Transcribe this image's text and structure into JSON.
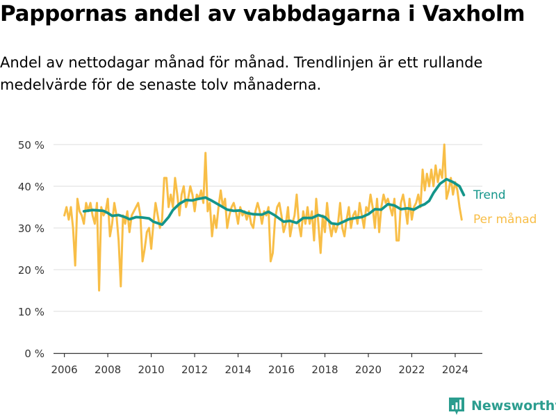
{
  "title": "Pappornas andel av vabbdagarna i Vaxholm",
  "subtitle": "Andel av nettodagar månad för månad. Trendlinjen är ett rullande medelvärde för de senaste tolv månaderna.",
  "brand": {
    "name": "Newsworthy",
    "logo_icon": "newsworthy-logo-icon",
    "color": "#2b9d8f"
  },
  "chart_data": {
    "type": "line",
    "title": "Pappornas andel av vabbdagarna i Vaxholm",
    "xlabel": "",
    "ylabel": "",
    "xlim": [
      2005.5,
      2025.25
    ],
    "ylim": [
      0,
      50
    ],
    "grid": true,
    "x_ticks": [
      2006,
      2008,
      2010,
      2012,
      2014,
      2016,
      2018,
      2020,
      2022,
      2024
    ],
    "y_ticks": [
      0,
      10,
      20,
      30,
      40,
      50
    ],
    "y_tick_labels": [
      "0 %",
      "10 %",
      "20 %",
      "30 %",
      "40 %",
      "50 %"
    ],
    "legend_placement": "right-end-labels",
    "series": [
      {
        "name": "Per månad",
        "color": "#f8be47",
        "points": [
          [
            2006.0,
            33
          ],
          [
            2006.1,
            35
          ],
          [
            2006.2,
            32
          ],
          [
            2006.3,
            35
          ],
          [
            2006.4,
            30
          ],
          [
            2006.5,
            21
          ],
          [
            2006.6,
            37
          ],
          [
            2006.7,
            34
          ],
          [
            2006.8,
            33
          ],
          [
            2006.9,
            31
          ],
          [
            2007.0,
            36
          ],
          [
            2007.1,
            34
          ],
          [
            2007.2,
            36
          ],
          [
            2007.3,
            33
          ],
          [
            2007.4,
            31
          ],
          [
            2007.5,
            36
          ],
          [
            2007.6,
            15
          ],
          [
            2007.7,
            35
          ],
          [
            2007.8,
            33
          ],
          [
            2007.9,
            34
          ],
          [
            2008.0,
            37
          ],
          [
            2008.1,
            28
          ],
          [
            2008.2,
            31
          ],
          [
            2008.3,
            36
          ],
          [
            2008.4,
            33
          ],
          [
            2008.5,
            27
          ],
          [
            2008.6,
            16
          ],
          [
            2008.7,
            33
          ],
          [
            2008.8,
            31
          ],
          [
            2008.9,
            34
          ],
          [
            2009.0,
            29
          ],
          [
            2009.1,
            33
          ],
          [
            2009.2,
            34
          ],
          [
            2009.3,
            35
          ],
          [
            2009.4,
            36
          ],
          [
            2009.5,
            33
          ],
          [
            2009.6,
            22
          ],
          [
            2009.7,
            25
          ],
          [
            2009.8,
            29
          ],
          [
            2009.9,
            30
          ],
          [
            2010.0,
            25
          ],
          [
            2010.1,
            31
          ],
          [
            2010.2,
            36
          ],
          [
            2010.3,
            33
          ],
          [
            2010.4,
            30
          ],
          [
            2010.5,
            32
          ],
          [
            2010.6,
            42
          ],
          [
            2010.7,
            42
          ],
          [
            2010.8,
            35
          ],
          [
            2010.9,
            38
          ],
          [
            2011.0,
            35
          ],
          [
            2011.1,
            42
          ],
          [
            2011.2,
            38
          ],
          [
            2011.3,
            33
          ],
          [
            2011.4,
            38
          ],
          [
            2011.5,
            40
          ],
          [
            2011.6,
            35
          ],
          [
            2011.7,
            37
          ],
          [
            2011.8,
            40
          ],
          [
            2011.9,
            38
          ],
          [
            2012.0,
            34
          ],
          [
            2012.1,
            38
          ],
          [
            2012.2,
            37
          ],
          [
            2012.3,
            39
          ],
          [
            2012.4,
            36
          ],
          [
            2012.5,
            48
          ],
          [
            2012.6,
            34
          ],
          [
            2012.7,
            36
          ],
          [
            2012.8,
            28
          ],
          [
            2012.9,
            33
          ],
          [
            2013.0,
            30
          ],
          [
            2013.1,
            35
          ],
          [
            2013.2,
            39
          ],
          [
            2013.3,
            35
          ],
          [
            2013.4,
            37
          ],
          [
            2013.5,
            30
          ],
          [
            2013.6,
            33
          ],
          [
            2013.7,
            35
          ],
          [
            2013.8,
            36
          ],
          [
            2013.9,
            34
          ],
          [
            2014.0,
            31
          ],
          [
            2014.1,
            35
          ],
          [
            2014.2,
            33
          ],
          [
            2014.3,
            34
          ],
          [
            2014.4,
            32
          ],
          [
            2014.5,
            34
          ],
          [
            2014.6,
            31
          ],
          [
            2014.7,
            30
          ],
          [
            2014.8,
            34
          ],
          [
            2014.9,
            36
          ],
          [
            2015.0,
            34
          ],
          [
            2015.1,
            31
          ],
          [
            2015.2,
            34
          ],
          [
            2015.3,
            33
          ],
          [
            2015.4,
            35
          ],
          [
            2015.5,
            22
          ],
          [
            2015.6,
            24
          ],
          [
            2015.7,
            32
          ],
          [
            2015.8,
            35
          ],
          [
            2015.9,
            36
          ],
          [
            2016.0,
            33
          ],
          [
            2016.1,
            29
          ],
          [
            2016.2,
            31
          ],
          [
            2016.3,
            35
          ],
          [
            2016.4,
            28
          ],
          [
            2016.5,
            31
          ],
          [
            2016.6,
            33
          ],
          [
            2016.7,
            38
          ],
          [
            2016.8,
            31
          ],
          [
            2016.9,
            28
          ],
          [
            2017.0,
            34
          ],
          [
            2017.1,
            31
          ],
          [
            2017.2,
            35
          ],
          [
            2017.3,
            31
          ],
          [
            2017.4,
            34
          ],
          [
            2017.5,
            27
          ],
          [
            2017.6,
            37
          ],
          [
            2017.7,
            31
          ],
          [
            2017.8,
            24
          ],
          [
            2017.9,
            33
          ],
          [
            2018.0,
            29
          ],
          [
            2018.1,
            36
          ],
          [
            2018.2,
            31
          ],
          [
            2018.3,
            28
          ],
          [
            2018.4,
            31
          ],
          [
            2018.5,
            29
          ],
          [
            2018.6,
            31
          ],
          [
            2018.7,
            36
          ],
          [
            2018.8,
            30
          ],
          [
            2018.9,
            28
          ],
          [
            2019.0,
            32
          ],
          [
            2019.1,
            35
          ],
          [
            2019.2,
            30
          ],
          [
            2019.3,
            33
          ],
          [
            2019.4,
            34
          ],
          [
            2019.5,
            31
          ],
          [
            2019.6,
            36
          ],
          [
            2019.7,
            33
          ],
          [
            2019.8,
            30
          ],
          [
            2019.9,
            35
          ],
          [
            2020.0,
            34
          ],
          [
            2020.1,
            38
          ],
          [
            2020.2,
            35
          ],
          [
            2020.3,
            30
          ],
          [
            2020.4,
            37
          ],
          [
            2020.5,
            29
          ],
          [
            2020.6,
            35
          ],
          [
            2020.7,
            38
          ],
          [
            2020.8,
            36
          ],
          [
            2020.9,
            37
          ],
          [
            2021.0,
            35
          ],
          [
            2021.1,
            33
          ],
          [
            2021.2,
            37
          ],
          [
            2021.3,
            27
          ],
          [
            2021.4,
            27
          ],
          [
            2021.5,
            36
          ],
          [
            2021.6,
            38
          ],
          [
            2021.7,
            35
          ],
          [
            2021.8,
            31
          ],
          [
            2021.9,
            37
          ],
          [
            2022.0,
            32
          ],
          [
            2022.1,
            35
          ],
          [
            2022.2,
            36
          ],
          [
            2022.3,
            38
          ],
          [
            2022.4,
            35
          ],
          [
            2022.5,
            44
          ],
          [
            2022.6,
            39
          ],
          [
            2022.7,
            43
          ],
          [
            2022.8,
            40
          ],
          [
            2022.9,
            44
          ],
          [
            2023.0,
            40
          ],
          [
            2023.1,
            45
          ],
          [
            2023.2,
            41
          ],
          [
            2023.3,
            44
          ],
          [
            2023.4,
            42
          ],
          [
            2023.5,
            50
          ],
          [
            2023.6,
            37
          ],
          [
            2023.7,
            39
          ],
          [
            2023.8,
            42
          ],
          [
            2023.9,
            38
          ],
          [
            2024.0,
            41
          ],
          [
            2024.1,
            39
          ],
          [
            2024.2,
            35
          ],
          [
            2024.3,
            32
          ]
        ]
      },
      {
        "name": "Trend",
        "color": "#14958a",
        "points": [
          [
            2006.9,
            34
          ],
          [
            2007.3,
            34.3
          ],
          [
            2007.8,
            34.1
          ],
          [
            2008.0,
            33.6
          ],
          [
            2008.2,
            32.9
          ],
          [
            2008.5,
            33.1
          ],
          [
            2008.8,
            32.6
          ],
          [
            2009.0,
            32.1
          ],
          [
            2009.3,
            32.6
          ],
          [
            2009.6,
            32.5
          ],
          [
            2009.9,
            32.3
          ],
          [
            2010.1,
            31.5
          ],
          [
            2010.5,
            30.8
          ],
          [
            2010.8,
            32.6
          ],
          [
            2011.0,
            34.3
          ],
          [
            2011.3,
            35.8
          ],
          [
            2011.6,
            36.7
          ],
          [
            2011.9,
            36.6
          ],
          [
            2012.1,
            36.9
          ],
          [
            2012.5,
            37.3
          ],
          [
            2012.8,
            36.5
          ],
          [
            2013.1,
            35.6
          ],
          [
            2013.5,
            34.4
          ],
          [
            2013.8,
            34.1
          ],
          [
            2014.1,
            34.2
          ],
          [
            2014.4,
            33.6
          ],
          [
            2014.7,
            33.3
          ],
          [
            2015.1,
            33.2
          ],
          [
            2015.4,
            33.9
          ],
          [
            2015.7,
            33.0
          ],
          [
            2016.1,
            31.5
          ],
          [
            2016.4,
            31.7
          ],
          [
            2016.7,
            31.2
          ],
          [
            2017.0,
            32.4
          ],
          [
            2017.4,
            32.4
          ],
          [
            2017.7,
            33.1
          ],
          [
            2018.0,
            32.6
          ],
          [
            2018.3,
            31.1
          ],
          [
            2018.6,
            30.9
          ],
          [
            2018.9,
            31.6
          ],
          [
            2019.1,
            32.1
          ],
          [
            2019.4,
            32.4
          ],
          [
            2019.7,
            32.6
          ],
          [
            2020.0,
            33.3
          ],
          [
            2020.3,
            34.5
          ],
          [
            2020.6,
            34.4
          ],
          [
            2020.9,
            35.7
          ],
          [
            2021.2,
            35.4
          ],
          [
            2021.5,
            34.5
          ],
          [
            2021.8,
            34.7
          ],
          [
            2022.1,
            34.4
          ],
          [
            2022.4,
            35.3
          ],
          [
            2022.6,
            35.7
          ],
          [
            2022.8,
            36.5
          ],
          [
            2023.0,
            38.4
          ],
          [
            2023.3,
            40.6
          ],
          [
            2023.6,
            41.7
          ],
          [
            2023.9,
            41.0
          ],
          [
            2024.2,
            40.0
          ],
          [
            2024.4,
            37.9
          ]
        ]
      }
    ]
  }
}
